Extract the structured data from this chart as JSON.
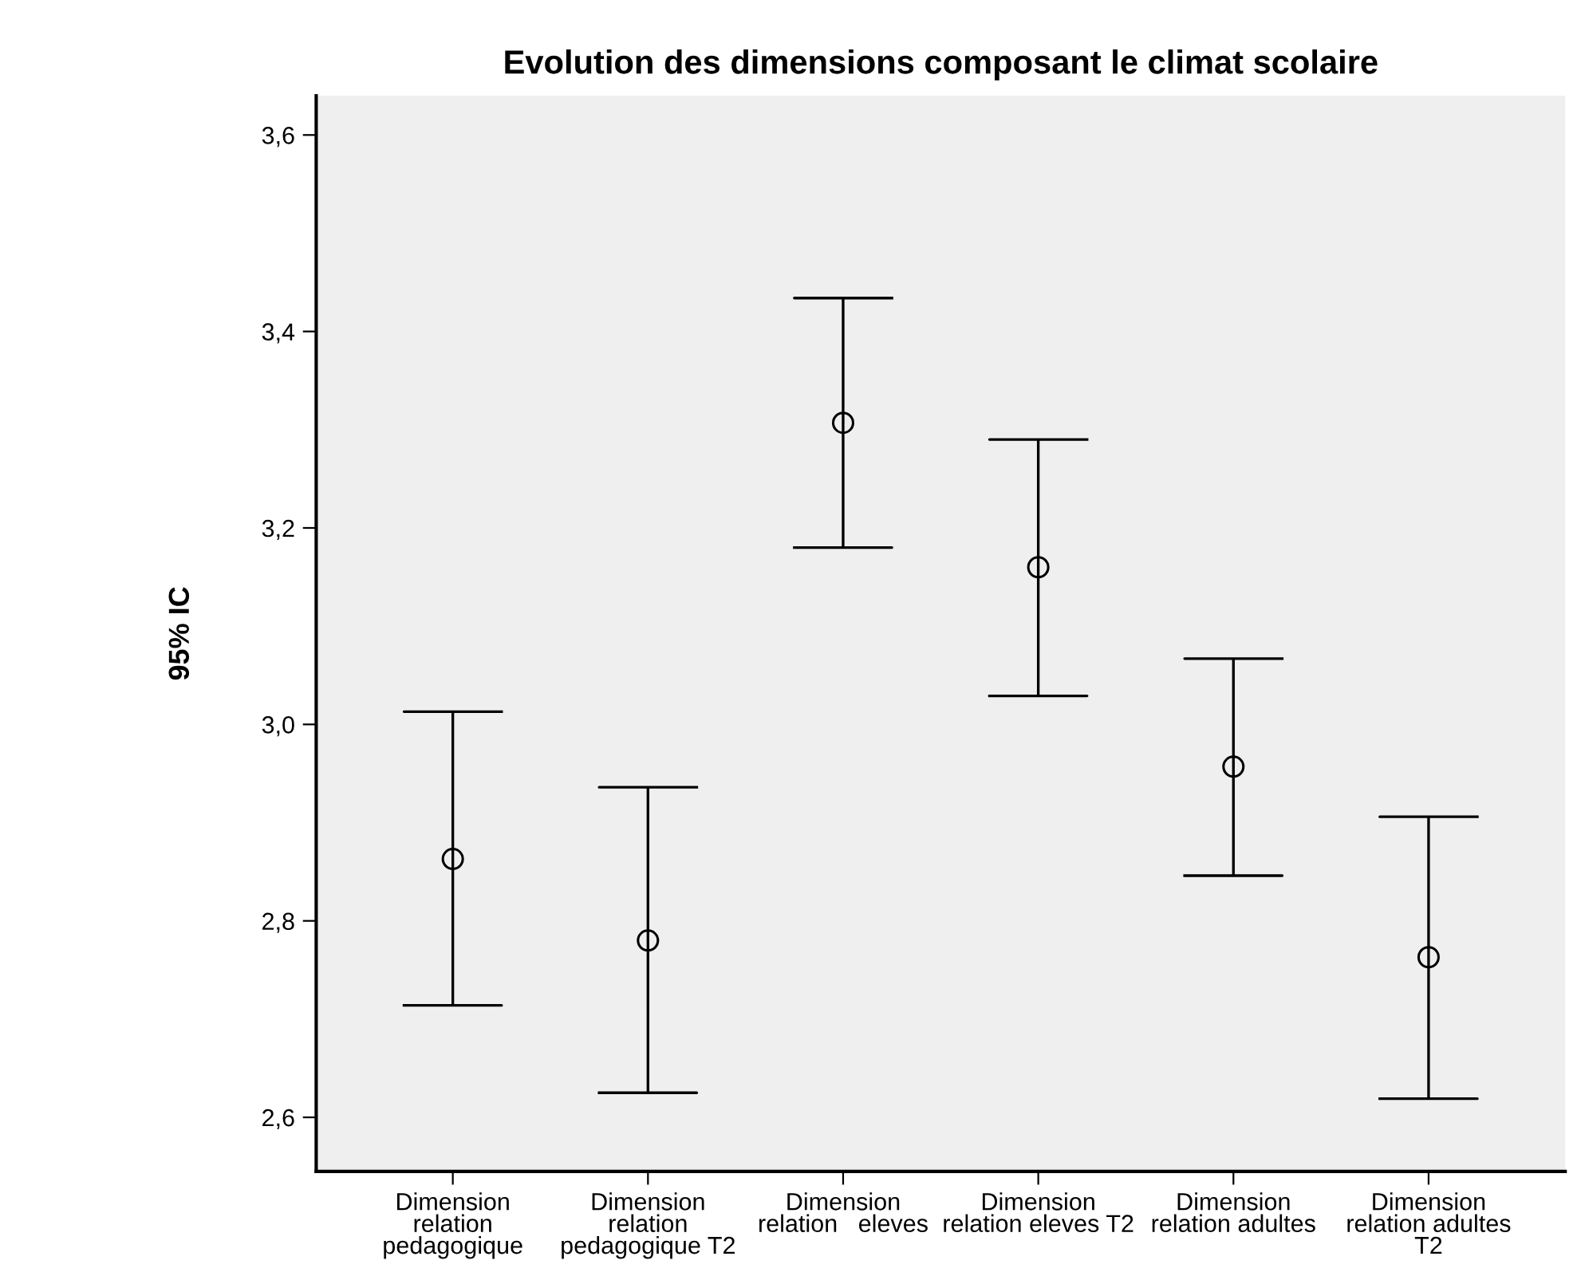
{
  "chart_data": {
    "type": "scatter",
    "title": "Evolution des dimensions composant le climat scolaire",
    "ylabel": "95% IC",
    "categories": [
      "Dimension\nrelation\npedagogique",
      "Dimension\nrelation\npedagogique T2",
      "Dimension\nrelation   eleves",
      "Dimension\nrelation eleves T2",
      "Dimension\nrelation adultes",
      "Dimension\nrelation adultes\nT2"
    ],
    "values": [
      2.863,
      2.78,
      3.307,
      3.16,
      2.957,
      2.763
    ],
    "errors": [
      [
        2.714,
        3.013
      ],
      [
        2.625,
        2.936
      ],
      [
        3.18,
        3.434
      ],
      [
        3.029,
        3.29
      ],
      [
        2.846,
        3.067
      ],
      [
        2.619,
        2.906
      ]
    ],
    "color": "#000000",
    "marker": "circle",
    "grid": false,
    "ylim": [
      2.545,
      3.64
    ],
    "yticks": [
      {
        "value": 2.6,
        "label": "2,6"
      },
      {
        "value": 2.8,
        "label": "2,8"
      },
      {
        "value": 3.0,
        "label": "3,0"
      },
      {
        "value": 3.2,
        "label": "3,2"
      },
      {
        "value": 3.4,
        "label": "3,4"
      },
      {
        "value": 3.6,
        "label": "3,6"
      }
    ]
  }
}
